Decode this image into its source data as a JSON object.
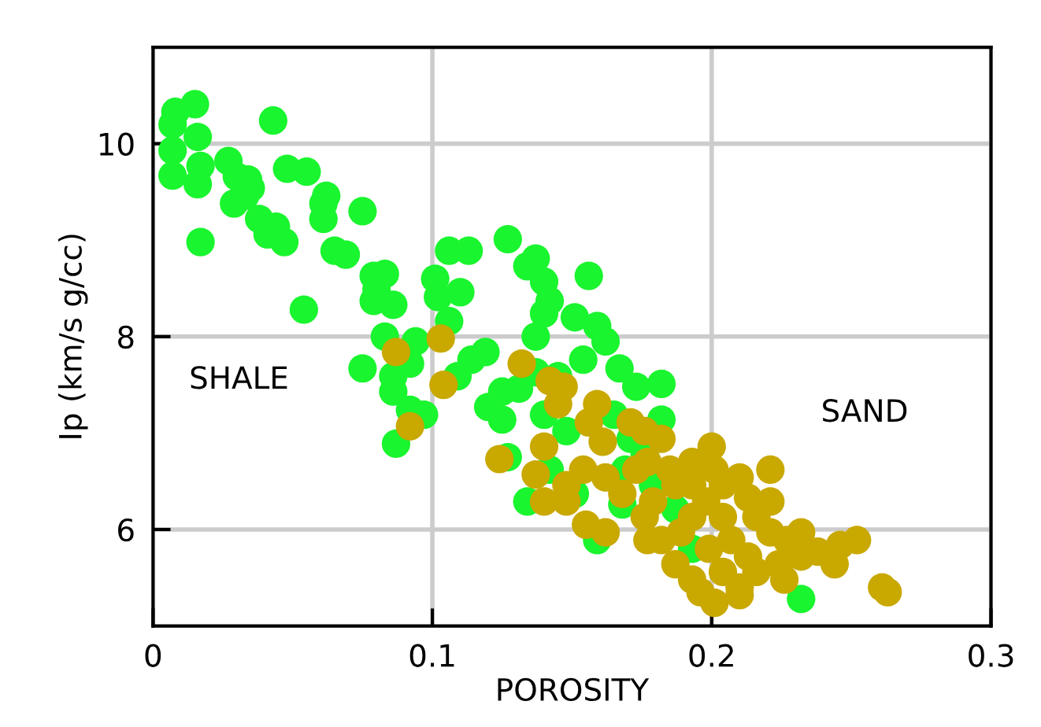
{
  "chart_data": {
    "type": "scatter",
    "xlabel": "POROSITY",
    "ylabel": "Ip (km/s g/cc)",
    "xlim": [
      0,
      0.3
    ],
    "xticks": [
      0,
      0.1,
      0.2,
      0.3
    ],
    "ylim": [
      5,
      11
    ],
    "yticks": [
      6,
      8,
      10
    ],
    "grid": true,
    "marker": "circle",
    "annotations": [
      "SHALE",
      "SAND"
    ],
    "series": [
      {
        "color": "#19f52e",
        "x": [
          0.008,
          0.015,
          0.007,
          0.007,
          0.007,
          0.016,
          0.017,
          0.016,
          0.017,
          0.027,
          0.03,
          0.034,
          0.035,
          0.033,
          0.029,
          0.038,
          0.041,
          0.044,
          0.047,
          0.043,
          0.048,
          0.055,
          0.061,
          0.062,
          0.061,
          0.065,
          0.069,
          0.054,
          0.075,
          0.08,
          0.079,
          0.083,
          0.079,
          0.086,
          0.083,
          0.086,
          0.092,
          0.086,
          0.092,
          0.087,
          0.094,
          0.101,
          0.106,
          0.102,
          0.11,
          0.113,
          0.106,
          0.109,
          0.114,
          0.119,
          0.125,
          0.127,
          0.134,
          0.137,
          0.14,
          0.14,
          0.137,
          0.142,
          0.137,
          0.125,
          0.127,
          0.131,
          0.145,
          0.14,
          0.154,
          0.156,
          0.151,
          0.159,
          0.162,
          0.167,
          0.173,
          0.182,
          0.165,
          0.171,
          0.176,
          0.182,
          0.179,
          0.187,
          0.169,
          0.232,
          0.097,
          0.075,
          0.12,
          0.148,
          0.142,
          0.134,
          0.151,
          0.168,
          0.159,
          0.193
        ],
        "values": [
          10.33,
          10.41,
          10.2,
          9.93,
          9.67,
          10.07,
          9.77,
          9.58,
          8.98,
          9.82,
          9.66,
          9.63,
          9.54,
          9.46,
          9.38,
          9.22,
          9.06,
          9.14,
          8.98,
          10.24,
          9.74,
          9.71,
          9.38,
          9.46,
          9.22,
          8.89,
          8.85,
          8.28,
          9.3,
          8.49,
          8.63,
          8.65,
          8.37,
          8.33,
          8.0,
          7.59,
          7.72,
          7.43,
          7.24,
          6.89,
          7.95,
          8.6,
          8.89,
          8.41,
          8.46,
          8.89,
          8.16,
          7.59,
          7.76,
          7.84,
          7.43,
          9.01,
          8.73,
          8.81,
          8.57,
          8.24,
          8.0,
          8.37,
          7.63,
          7.14,
          6.75,
          7.46,
          7.59,
          7.19,
          7.76,
          8.63,
          8.2,
          8.11,
          7.95,
          7.67,
          7.48,
          7.51,
          7.19,
          6.94,
          6.78,
          7.14,
          6.46,
          6.21,
          6.62,
          5.28,
          7.19,
          7.67,
          7.27,
          7.02,
          6.62,
          6.29,
          6.37,
          6.26,
          5.89,
          5.8
        ]
      },
      {
        "color": "#c9a800",
        "x": [
          0.087,
          0.103,
          0.092,
          0.104,
          0.124,
          0.132,
          0.142,
          0.147,
          0.145,
          0.14,
          0.137,
          0.14,
          0.148,
          0.159,
          0.156,
          0.161,
          0.154,
          0.162,
          0.171,
          0.176,
          0.182,
          0.177,
          0.185,
          0.179,
          0.187,
          0.193,
          0.2,
          0.201,
          0.204,
          0.198,
          0.21,
          0.213,
          0.193,
          0.204,
          0.216,
          0.221,
          0.207,
          0.199,
          0.213,
          0.221,
          0.227,
          0.232,
          0.182,
          0.176,
          0.187,
          0.193,
          0.204,
          0.21,
          0.216,
          0.224,
          0.232,
          0.238,
          0.246,
          0.252,
          0.244,
          0.226,
          0.196,
          0.201,
          0.21,
          0.261,
          0.263,
          0.177,
          0.162,
          0.155,
          0.148,
          0.168,
          0.173,
          0.193,
          0.189,
          0.221
        ],
        "values": [
          7.84,
          7.98,
          7.07,
          7.5,
          6.73,
          7.72,
          7.54,
          7.48,
          7.3,
          6.86,
          6.57,
          6.29,
          6.29,
          7.3,
          7.11,
          6.91,
          6.62,
          6.54,
          7.11,
          7.02,
          6.94,
          6.7,
          6.62,
          6.29,
          6.46,
          6.7,
          6.86,
          6.62,
          6.46,
          6.29,
          6.54,
          6.33,
          6.13,
          6.13,
          6.13,
          6.29,
          5.89,
          5.8,
          5.72,
          5.97,
          5.89,
          5.97,
          5.89,
          6.13,
          5.64,
          5.48,
          5.56,
          5.4,
          5.56,
          5.64,
          5.72,
          5.77,
          5.84,
          5.89,
          5.64,
          5.48,
          5.35,
          5.24,
          5.32,
          5.4,
          5.35,
          5.89,
          5.97,
          6.05,
          6.46,
          6.37,
          6.62,
          6.46,
          5.97,
          6.62
        ]
      }
    ]
  }
}
